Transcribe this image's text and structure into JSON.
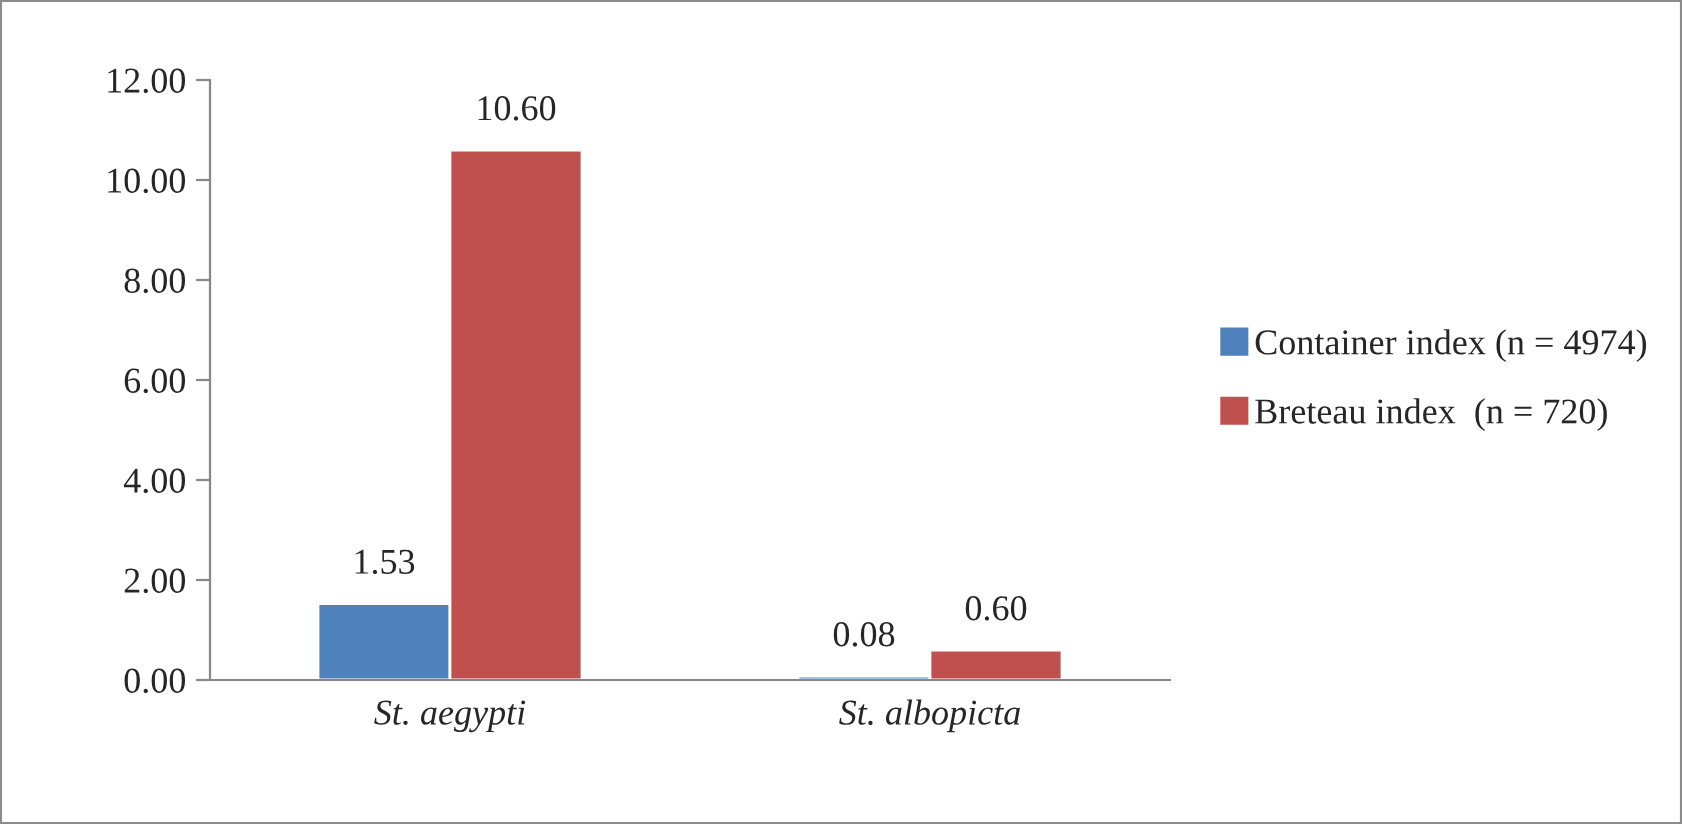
{
  "chart_data": {
    "type": "bar",
    "categories": [
      "St. aegypti",
      "St. albopicta"
    ],
    "series": [
      {
        "name": "Container index (n = 4974)",
        "color": "#4f81bd",
        "values": [
          1.53,
          0.08
        ],
        "value_labels": [
          "1.53",
          "0.08"
        ]
      },
      {
        "name": "Breteau index  (n = 720)",
        "color": "#c0504d",
        "values": [
          10.6,
          0.6
        ],
        "value_labels": [
          "10.60",
          "0.60"
        ]
      }
    ],
    "ylim": [
      0,
      12
    ],
    "yticks": [
      {
        "value": 0,
        "label": "0.00"
      },
      {
        "value": 2,
        "label": "2.00"
      },
      {
        "value": 4,
        "label": "4.00"
      },
      {
        "value": 6,
        "label": "6.00"
      },
      {
        "value": 8,
        "label": "8.00"
      },
      {
        "value": 10,
        "label": "10.00"
      },
      {
        "value": 12,
        "label": "12.00"
      }
    ],
    "grid": false,
    "legend": "right"
  }
}
